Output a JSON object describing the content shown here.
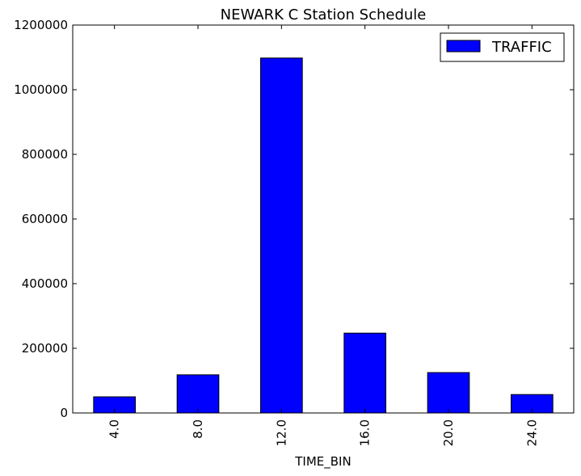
{
  "chart_data": {
    "type": "bar",
    "title": "NEWARK C Station Schedule",
    "xlabel": "TIME_BIN",
    "ylabel": "",
    "categories": [
      "4.0",
      "8.0",
      "12.0",
      "16.0",
      "20.0",
      "24.0"
    ],
    "series": [
      {
        "name": "TRAFFIC",
        "values": [
          50000,
          118000,
          1098000,
          247000,
          125000,
          57000
        ],
        "color": "#0000ff"
      }
    ],
    "ylim": [
      0,
      1200000
    ],
    "yticks": [
      "0",
      "200000",
      "400000",
      "600000",
      "800000",
      "1000000",
      "1200000"
    ],
    "grid": false,
    "legend_position": "upper right"
  }
}
